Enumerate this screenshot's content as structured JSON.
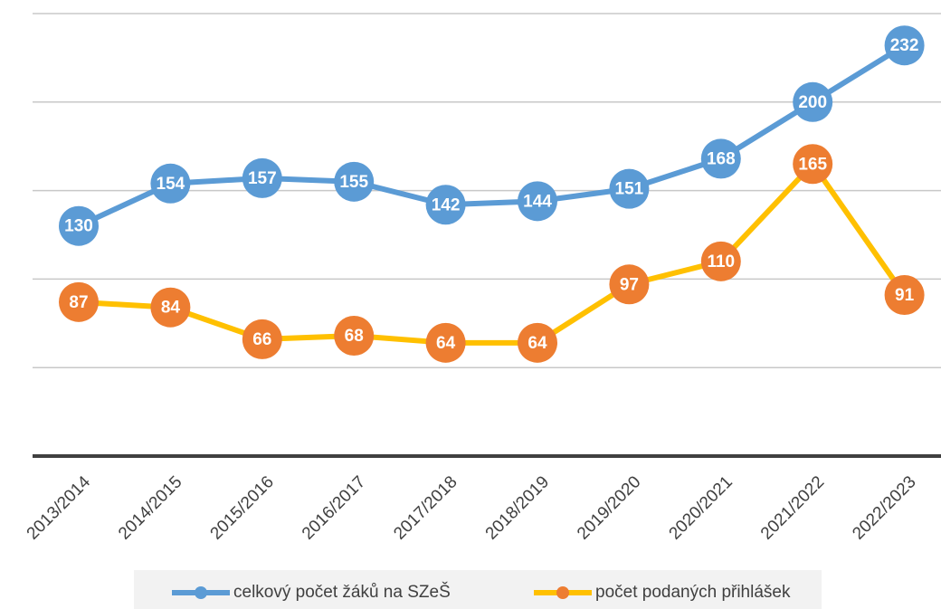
{
  "chart_data": {
    "type": "line",
    "categories": [
      "2013/2014",
      "2014/2015",
      "2015/2016",
      "2016/2017",
      "2017/2018",
      "2018/2019",
      "2019/2020",
      "2020/2021",
      "2021/2022",
      "2022/2023"
    ],
    "series": [
      {
        "name": "celkový počet žáků na SZeŠ",
        "color": "#5b9bd5",
        "marker_color": "#5b9bd5",
        "values": [
          130,
          154,
          157,
          155,
          142,
          144,
          151,
          168,
          200,
          232
        ]
      },
      {
        "name": "počet podaných přihlášek",
        "color": "#ffc000",
        "marker_color": "#ed7d31",
        "values": [
          87,
          84,
          66,
          68,
          64,
          64,
          97,
          110,
          165,
          91
        ]
      }
    ],
    "ylim": [
      0,
      250
    ],
    "yticks": [
      0,
      50,
      100,
      150,
      200,
      250
    ],
    "grid": true,
    "data_labels": true,
    "legend": "bottom"
  }
}
